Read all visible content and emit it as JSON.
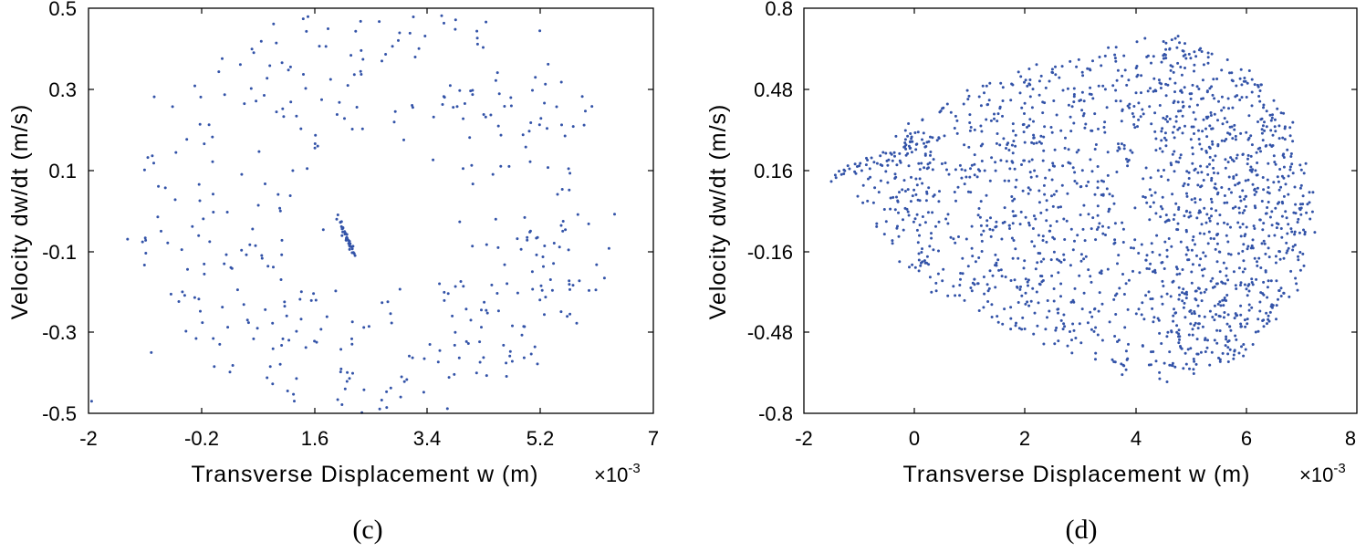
{
  "figure": {
    "panels": [
      "(c)",
      "(d)"
    ]
  },
  "chart_data": [
    {
      "type": "scatter",
      "panel": "(c)",
      "title": "",
      "xlabel": "Transverse  Displacement  w  (m)",
      "x_multiplier": "×10",
      "x_multiplier_exp": "-3",
      "ylabel": "Velocity  dw/dt  (m/s)",
      "xlim": [
        -2,
        7
      ],
      "ylim": [
        -0.5,
        0.5
      ],
      "xticks": [
        "-2",
        "-0.2",
        "1.6",
        "3.4",
        "5.2",
        "7"
      ],
      "yticks": [
        "0.5",
        "0.3",
        "0.1",
        "-0.1",
        "-0.3",
        "-0.5"
      ],
      "grid": false,
      "marker_color": "#3353a8",
      "n_points": 400,
      "cluster_center": [
        2.1,
        -0.06
      ]
    },
    {
      "type": "scatter",
      "panel": "(d)",
      "title": "",
      "xlabel": "Transverse  Displacement  w  (m)",
      "x_multiplier": "×10",
      "x_multiplier_exp": "-3",
      "ylabel": "Velocity  dw/dt  (m/s)",
      "xlim": [
        -2,
        8
      ],
      "ylim": [
        -0.8,
        0.8
      ],
      "xticks": [
        "-2",
        "0",
        "2",
        "4",
        "6",
        "8"
      ],
      "yticks": [
        "0.8",
        "0.48",
        "0.16",
        "-0.16",
        "-0.48",
        "-0.8"
      ],
      "grid": false,
      "marker_color": "#3353a8",
      "n_points": 1700,
      "attractor_center": [
        4.4,
        0.0
      ]
    }
  ]
}
